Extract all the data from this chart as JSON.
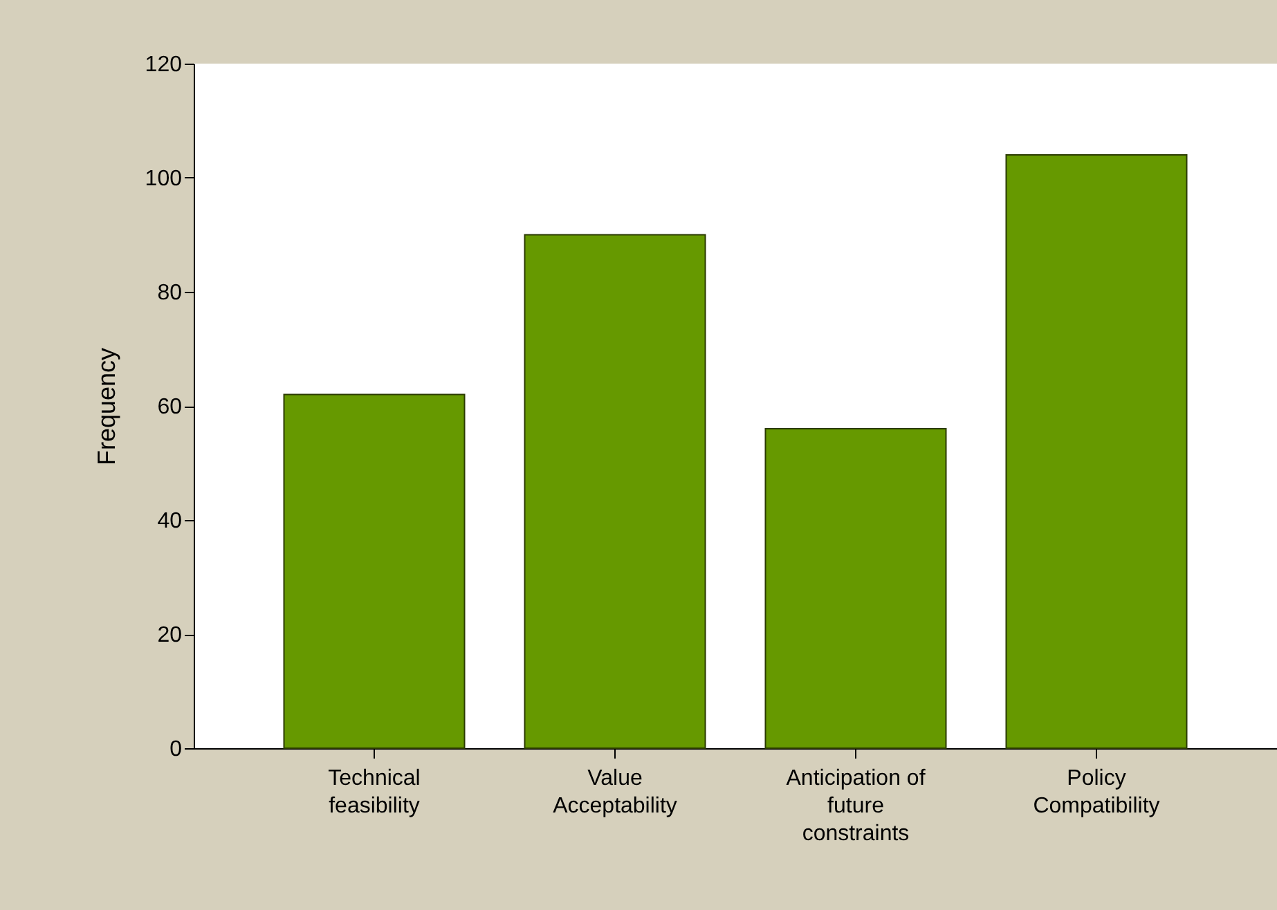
{
  "chart_data": {
    "type": "bar",
    "ylabel": "Frequency",
    "categories": [
      "Technical feasibility",
      "Value Acceptability",
      "Anticipation of future constraints",
      "Policy Compatibility"
    ],
    "values": [
      62,
      90,
      56,
      104
    ],
    "color": "#669900",
    "ylim": [
      0,
      120
    ],
    "yticks": [
      0,
      20,
      40,
      60,
      80,
      100,
      120
    ],
    "grid": false
  }
}
